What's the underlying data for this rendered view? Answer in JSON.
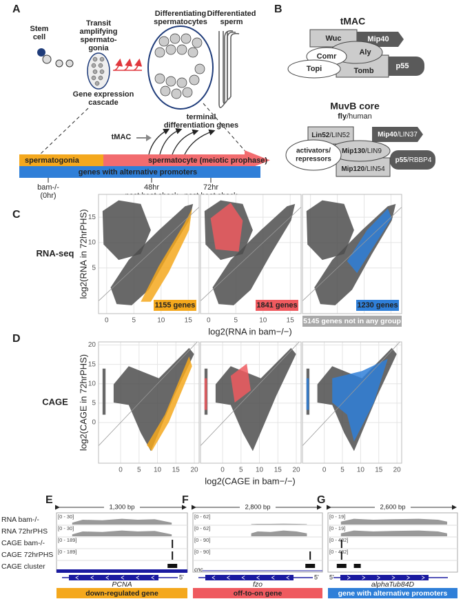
{
  "panel_a": {
    "label": "A",
    "stem_cell": [
      "Stem",
      "cell"
    ],
    "transit": [
      "Transit",
      "amplifying",
      "spermato-",
      "gonia"
    ],
    "differentiating": [
      "Differentiating",
      "spermatocytes"
    ],
    "differentiated": [
      "Differentiated",
      "sperm"
    ],
    "cascade": [
      "Gene expression",
      "cascade"
    ],
    "terminal": [
      "terminal",
      "differentiation genes"
    ],
    "tmac": "tMAC",
    "stage_bars": [
      "spermatogonia",
      "spermatocyte (meiotic prophase)"
    ],
    "alt_bar": "genes with alternative promoters",
    "timepoints": [
      [
        "bam-/-",
        "(0hr)"
      ],
      [
        "48hr",
        "post heat shock"
      ],
      [
        "72hr",
        "post heat shock"
      ]
    ]
  },
  "panel_b": {
    "label": "B",
    "tmac_title": "tMAC",
    "tmac_proteins": {
      "wuc": "Wuc",
      "mip40": "Mip40",
      "comr": "Comr",
      "aly": "Aly",
      "topi": "Topi",
      "tomb": "Tomb",
      "p55": "p55"
    },
    "muvb_title": "MuvB core",
    "species": {
      "fly": "fly",
      "sep": "/",
      "human": "human"
    },
    "muvb_proteins": [
      {
        "fly": "Lin52",
        "human": "LIN52"
      },
      {
        "fly": "Mip40",
        "human": "LIN37"
      },
      {
        "fly": "Mip130",
        "human": "LIN9"
      },
      {
        "fly": "Mip120",
        "human": "LIN54"
      },
      {
        "fly": "p55",
        "human": "RBBP4"
      }
    ],
    "activators": [
      "activators/",
      "repressors"
    ]
  },
  "panel_c": {
    "label": "C",
    "row_label": "RNA-seq",
    "y_label": "log2(RNA in 72hrPHS)",
    "x_label": "log2(RNA in bam−/−)",
    "xlim": [
      -1.5,
      17
    ],
    "ylim": [
      -4,
      19.5
    ],
    "xticks": [
      0,
      5,
      10,
      15
    ],
    "yticks": [
      5,
      10,
      15
    ],
    "counts": [
      {
        "text": "1155 genes",
        "color": "#f4a81d"
      },
      {
        "text": "1841 genes",
        "color": "#ef5a5f"
      },
      {
        "text": "1230 genes",
        "color": "#2f7fd8"
      }
    ],
    "other": {
      "text": "5145 genes not in any group",
      "color": "#a9a9a9"
    }
  },
  "panel_d": {
    "label": "D",
    "row_label": "CAGE",
    "y_label": "log2(CAGE in 72hrPHS)",
    "x_label": "log2(CAGE in bam−/−)",
    "xlim": [
      -6,
      21.3
    ],
    "ylim": [
      -10.5,
      20.8
    ],
    "xticks": [
      0,
      5,
      10,
      15,
      20
    ],
    "yticks": [
      0,
      5,
      10,
      15,
      20
    ],
    "colors": [
      "#f4a81d",
      "#ef5a5f",
      "#2f7fd8"
    ]
  },
  "tracks": {
    "names": [
      "RNA bam-/-",
      "RNA 72hrPHS",
      "CAGE bam-/-",
      "CAGE 72hrPHS",
      "CAGE cluster"
    ],
    "panels": [
      {
        "label": "E",
        "scale": "1,300 bp",
        "ranges": [
          "[0 - 30]",
          "[0 - 30]",
          "[0 - 189]",
          "[0 - 189]"
        ],
        "gene": "PCNA",
        "five_prime": "5'",
        "footer": "down-regulated gene",
        "color": "#f4a81d"
      },
      {
        "label": "F",
        "scale": "2,800 bp",
        "ranges": [
          "[0 - 62]",
          "[0 - 62]",
          "[0 - 90]",
          "[0 - 90]"
        ],
        "extra_gene": "cnc",
        "gene": "fzo",
        "five_prime": "5'",
        "footer": "off-to-on gene",
        "color": "#ef5a5f"
      },
      {
        "label": "G",
        "scale": "2,600 bp",
        "ranges": [
          "[0 - 19]",
          "[0 - 19]",
          "[0 - 482]",
          "[0 - 482]"
        ],
        "five_prime": "5'",
        "gene": "alphaTub84D",
        "footer": "gene with alternative promoters",
        "color": "#2f7fd8"
      }
    ]
  }
}
